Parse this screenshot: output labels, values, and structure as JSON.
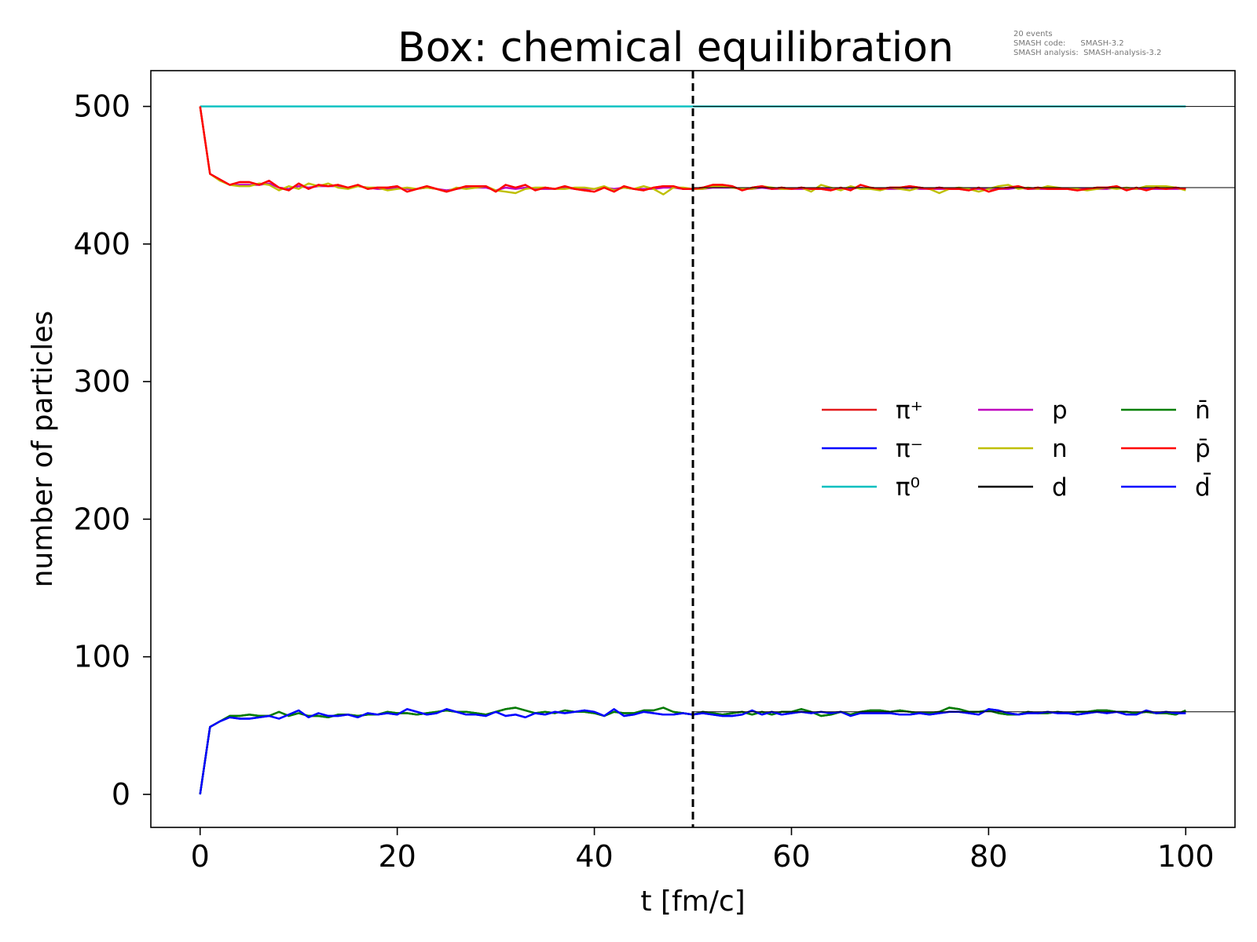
{
  "chart_data": {
    "type": "line",
    "title": "Box: chemical equilibration",
    "xlabel": "t [fm/c]",
    "ylabel": "number of particles",
    "xlim": [
      -5,
      105
    ],
    "ylim": [
      -24,
      526
    ],
    "xticks": [
      0,
      20,
      40,
      60,
      80,
      100
    ],
    "yticks": [
      0,
      100,
      200,
      300,
      400,
      500
    ],
    "grid": false,
    "legend_position": "center-right",
    "info_lines": [
      "20 events",
      "SMASH code:      SMASH-3.2",
      "SMASH analysis:  SMASH-analysis-3.2"
    ],
    "vline": {
      "x": 50,
      "style": "dashed",
      "color": "#000000"
    },
    "reference_lines": [
      {
        "y": 500,
        "x_from": 50,
        "x_to": 105,
        "color": "#000000"
      },
      {
        "y": 441,
        "x_from": 50,
        "x_to": 105,
        "color": "#000000"
      },
      {
        "y": 60,
        "x_from": 50,
        "x_to": 105,
        "color": "#000000"
      }
    ],
    "x": [
      0,
      1,
      2,
      3,
      4,
      5,
      6,
      7,
      8,
      9,
      10,
      11,
      12,
      13,
      14,
      15,
      16,
      17,
      18,
      19,
      20,
      21,
      22,
      23,
      24,
      25,
      26,
      27,
      28,
      29,
      30,
      31,
      32,
      33,
      34,
      35,
      36,
      37,
      38,
      39,
      40,
      41,
      42,
      43,
      44,
      45,
      46,
      47,
      48,
      49,
      50,
      51,
      52,
      53,
      54,
      55,
      56,
      57,
      58,
      59,
      60,
      61,
      62,
      63,
      64,
      65,
      66,
      67,
      68,
      69,
      70,
      71,
      72,
      73,
      74,
      75,
      76,
      77,
      78,
      79,
      80,
      81,
      82,
      83,
      84,
      85,
      86,
      87,
      88,
      89,
      90,
      91,
      92,
      93,
      94,
      95,
      96,
      97,
      98,
      99,
      100
    ],
    "series": [
      {
        "name": "π⁺",
        "color": "#e41a1c",
        "values": [
          500,
          451,
          447,
          443,
          445,
          445,
          443,
          446,
          441,
          439,
          444,
          440,
          443,
          442,
          443,
          441,
          443,
          440,
          441,
          441,
          442,
          438,
          440,
          442,
          440,
          438,
          440,
          442,
          442,
          442,
          438,
          443,
          441,
          443,
          439,
          441,
          440,
          442,
          440,
          439,
          438,
          441,
          438,
          442,
          440,
          439,
          441,
          442,
          442,
          440,
          440,
          441,
          443,
          443,
          442,
          439,
          441,
          442,
          440,
          441,
          440,
          441,
          440,
          440,
          439,
          441,
          439,
          443,
          441,
          440,
          441,
          441,
          442,
          441,
          440,
          441,
          440,
          440,
          439,
          441,
          438,
          440,
          441,
          442,
          440,
          441,
          440,
          440,
          440,
          439,
          440,
          441,
          441,
          442,
          439,
          441,
          439,
          441,
          440,
          441,
          440
        ]
      },
      {
        "name": "π⁻",
        "color": "#0000ff",
        "values": [
          0,
          49,
          53,
          56,
          55,
          55,
          56,
          57,
          55,
          58,
          61,
          56,
          59,
          57,
          57,
          58,
          56,
          59,
          58,
          59,
          58,
          62,
          60,
          58,
          59,
          62,
          60,
          58,
          58,
          57,
          60,
          57,
          58,
          56,
          59,
          58,
          60,
          59,
          60,
          61,
          60,
          57,
          62,
          57,
          58,
          60,
          59,
          58,
          58,
          59,
          58,
          59,
          58,
          57,
          57,
          58,
          61,
          58,
          60,
          58,
          59,
          60,
          59,
          60,
          59,
          60,
          57,
          59,
          59,
          59,
          59,
          58,
          58,
          59,
          58,
          59,
          60,
          60,
          59,
          58,
          62,
          61,
          59,
          58,
          59,
          59,
          60,
          59,
          59,
          58,
          59,
          60,
          59,
          60,
          58,
          58,
          61,
          59,
          60,
          59,
          59
        ]
      },
      {
        "name": "π⁰",
        "color": "#00bfbf",
        "values": [
          500,
          500,
          500,
          500,
          500,
          500,
          500,
          500,
          500,
          500,
          500,
          500,
          500,
          500,
          500,
          500,
          500,
          500,
          500,
          500,
          500,
          500,
          500,
          500,
          500,
          500,
          500,
          500,
          500,
          500,
          500,
          500,
          500,
          500,
          500,
          500,
          500,
          500,
          500,
          500,
          500,
          500,
          500,
          500,
          500,
          500,
          500,
          500,
          500,
          500,
          500,
          500,
          500,
          500,
          500,
          500,
          500,
          500,
          500,
          500,
          500,
          500,
          500,
          500,
          500,
          500,
          500,
          500,
          500,
          500,
          500,
          500,
          500,
          500,
          500,
          500,
          500,
          500,
          500,
          500,
          500,
          500,
          500,
          500,
          500,
          500,
          500,
          500,
          500,
          500,
          500,
          500,
          500,
          500,
          500,
          500,
          500,
          500,
          500,
          500,
          500
        ]
      },
      {
        "name": "p",
        "color": "#bf00bf",
        "values": [
          500,
          451,
          447,
          443,
          443,
          443,
          443,
          444,
          441,
          440,
          442,
          441,
          442,
          442,
          442,
          441,
          442,
          441,
          440,
          440,
          441,
          440,
          440,
          441,
          440,
          439,
          440,
          441,
          441,
          441,
          439,
          441,
          440,
          441,
          440,
          440,
          440,
          441,
          440,
          440,
          440,
          441,
          440,
          441,
          440,
          440,
          440,
          441,
          441,
          440,
          440,
          440,
          441,
          441,
          441,
          440,
          440,
          441,
          440,
          440,
          440,
          440,
          440,
          440,
          440,
          440,
          440,
          441,
          440,
          440,
          440,
          440,
          441,
          440,
          440,
          440,
          440,
          440,
          440,
          440,
          440,
          440,
          440,
          441,
          440,
          440,
          440,
          440,
          440,
          440,
          440,
          440,
          440,
          441,
          440,
          440,
          440,
          440,
          440,
          440,
          440
        ]
      },
      {
        "name": "n",
        "color": "#bfbf00",
        "values": [
          500,
          451,
          446,
          443,
          442,
          442,
          444,
          443,
          439,
          442,
          440,
          444,
          442,
          444,
          441,
          440,
          442,
          441,
          441,
          439,
          440,
          441,
          440,
          441,
          440,
          438,
          441,
          440,
          441,
          442,
          439,
          438,
          437,
          440,
          441,
          441,
          440,
          440,
          441,
          441,
          440,
          442,
          439,
          441,
          440,
          442,
          440,
          436,
          441,
          441,
          440,
          440,
          442,
          442,
          441,
          440,
          440,
          442,
          441,
          440,
          440,
          441,
          438,
          443,
          441,
          439,
          442,
          440,
          440,
          439,
          441,
          440,
          439,
          441,
          440,
          437,
          440,
          441,
          440,
          438,
          440,
          442,
          443,
          440,
          441,
          440,
          442,
          441,
          440,
          440,
          439,
          440,
          441,
          440,
          441,
          440,
          442,
          442,
          442,
          441,
          439
        ]
      },
      {
        "name": "d",
        "color": "#000000",
        "values": [
          0,
          49,
          53,
          57,
          57,
          58,
          57,
          57,
          60,
          57,
          59,
          57,
          57,
          56,
          58,
          58,
          57,
          58,
          58,
          60,
          59,
          59,
          58,
          59,
          60,
          61,
          60,
          60,
          59,
          58,
          60,
          62,
          63,
          61,
          59,
          60,
          59,
          61,
          60,
          60,
          59,
          57,
          60,
          59,
          59,
          61,
          61,
          63,
          60,
          59,
          58,
          60,
          59,
          58,
          59,
          60,
          58,
          60,
          58,
          60,
          60,
          62,
          60,
          57,
          58,
          60,
          58,
          60,
          61,
          61,
          60,
          61,
          60,
          59,
          59,
          60,
          63,
          62,
          60,
          60,
          61,
          59,
          58,
          58,
          60,
          59,
          59,
          60,
          59,
          60,
          60,
          61,
          61,
          60,
          60,
          59,
          60,
          59,
          59,
          58,
          61
        ]
      },
      {
        "name": "n̄",
        "color": "#007f00",
        "values": [
          0,
          49,
          53,
          57,
          57,
          58,
          57,
          57,
          60,
          57,
          59,
          57,
          57,
          56,
          58,
          58,
          57,
          58,
          58,
          60,
          59,
          59,
          58,
          59,
          60,
          61,
          60,
          60,
          59,
          58,
          60,
          62,
          63,
          61,
          59,
          60,
          59,
          61,
          60,
          60,
          59,
          57,
          60,
          59,
          59,
          61,
          61,
          63,
          60,
          59,
          58,
          60,
          59,
          58,
          59,
          60,
          58,
          60,
          58,
          60,
          60,
          62,
          60,
          57,
          58,
          60,
          58,
          60,
          61,
          61,
          60,
          61,
          60,
          59,
          59,
          60,
          63,
          62,
          60,
          60,
          61,
          59,
          58,
          58,
          60,
          59,
          59,
          60,
          59,
          60,
          60,
          61,
          61,
          60,
          60,
          59,
          60,
          59,
          59,
          58,
          61
        ]
      },
      {
        "name": "p̄",
        "color": "#ff0000",
        "values": [
          500,
          451,
          447,
          443,
          445,
          445,
          443,
          446,
          441,
          439,
          444,
          440,
          443,
          442,
          443,
          441,
          443,
          440,
          441,
          441,
          442,
          438,
          440,
          442,
          440,
          438,
          440,
          442,
          442,
          442,
          438,
          443,
          441,
          443,
          439,
          441,
          440,
          442,
          440,
          439,
          438,
          441,
          438,
          442,
          440,
          439,
          441,
          442,
          442,
          440,
          440,
          441,
          443,
          443,
          442,
          439,
          441,
          442,
          440,
          441,
          440,
          441,
          440,
          440,
          439,
          441,
          439,
          443,
          441,
          440,
          441,
          441,
          442,
          441,
          440,
          441,
          440,
          440,
          439,
          441,
          438,
          440,
          441,
          442,
          440,
          441,
          440,
          440,
          440,
          439,
          440,
          441,
          441,
          442,
          439,
          441,
          439,
          441,
          440,
          441,
          440
        ]
      },
      {
        "name": "d̄",
        "color": "#0000ff",
        "values": [
          0,
          49,
          53,
          56,
          55,
          55,
          56,
          57,
          55,
          58,
          61,
          56,
          59,
          57,
          57,
          58,
          56,
          59,
          58,
          59,
          58,
          62,
          60,
          58,
          59,
          62,
          60,
          58,
          58,
          57,
          60,
          57,
          58,
          56,
          59,
          58,
          60,
          59,
          60,
          61,
          60,
          57,
          62,
          57,
          58,
          60,
          59,
          58,
          58,
          59,
          58,
          59,
          58,
          57,
          57,
          58,
          61,
          58,
          60,
          58,
          59,
          60,
          59,
          60,
          59,
          60,
          57,
          59,
          59,
          59,
          59,
          58,
          58,
          59,
          58,
          59,
          60,
          60,
          59,
          58,
          62,
          61,
          59,
          58,
          59,
          59,
          60,
          59,
          59,
          58,
          59,
          60,
          59,
          60,
          58,
          58,
          61,
          59,
          60,
          59,
          59
        ]
      }
    ]
  }
}
